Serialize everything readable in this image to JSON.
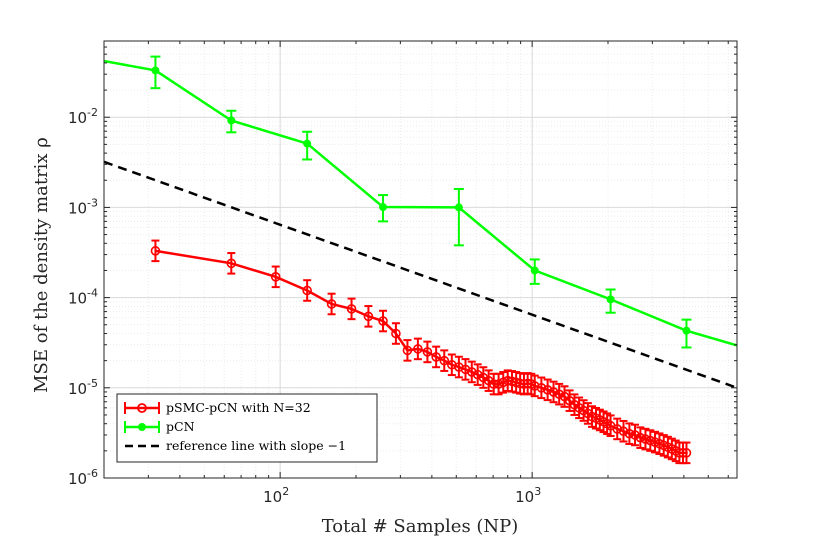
{
  "chart_data": {
    "type": "line",
    "scale": {
      "x": "log",
      "y": "log"
    },
    "xlabel": "Total # Samples (NP)",
    "ylabel": "MSE of the density matrix ρ",
    "xlim": [
      20,
      6500
    ],
    "ylim": [
      1e-06,
      0.07
    ],
    "grid": true,
    "legend_position": "bottom-left",
    "x_ticks": [
      {
        "value": 100,
        "base": "10",
        "exp": "2"
      },
      {
        "value": 1000,
        "base": "10",
        "exp": "3"
      }
    ],
    "y_ticks": [
      {
        "value": 0.01,
        "base": "10",
        "exp": "-2"
      },
      {
        "value": 0.001,
        "base": "10",
        "exp": "-3"
      },
      {
        "value": 0.0001,
        "base": "10",
        "exp": "-4"
      },
      {
        "value": 1e-05,
        "base": "10",
        "exp": "-5"
      },
      {
        "value": 1e-06,
        "base": "10",
        "exp": "-6"
      }
    ],
    "series": [
      {
        "name": "pSMC-pCN with N=32",
        "color": "#ff0000",
        "marker": "open-circle",
        "x": [
          32,
          64,
          96,
          128,
          160,
          192,
          224,
          256,
          288,
          320,
          352,
          384,
          416,
          448,
          480,
          512,
          544,
          576,
          608,
          640,
          672,
          704,
          736,
          768,
          800,
          832,
          864,
          896,
          928,
          960,
          992,
          1024,
          1088,
          1152,
          1216,
          1280,
          1344,
          1408,
          1472,
          1536,
          1600,
          1664,
          1728,
          1792,
          1856,
          1920,
          1984,
          2048,
          2176,
          2304,
          2432,
          2560,
          2688,
          2816,
          2944,
          3072,
          3200,
          3328,
          3456,
          3584,
          3712,
          3840,
          3968,
          4096
        ],
        "y": [
          0.00033,
          0.00024,
          0.00017,
          0.00012,
          8.5e-05,
          7.5e-05,
          6.2e-05,
          5.5e-05,
          4e-05,
          2.6e-05,
          2.7e-05,
          2.5e-05,
          2.2e-05,
          2e-05,
          1.8e-05,
          1.7e-05,
          1.6e-05,
          1.5e-05,
          1.4e-05,
          1.3e-05,
          1.2e-05,
          1.1e-05,
          1.1e-05,
          1.15e-05,
          1.2e-05,
          1.18e-05,
          1.15e-05,
          1.12e-05,
          1.1e-05,
          1.12e-05,
          1.1e-05,
          1.05e-05,
          1e-05,
          9.5e-06,
          9e-06,
          8.5e-06,
          8e-06,
          7.2e-06,
          6.5e-06,
          6e-06,
          5.6e-06,
          5.2e-06,
          4.8e-06,
          4.6e-06,
          4.4e-06,
          4.2e-06,
          4e-06,
          3.8e-06,
          3.5e-06,
          3.3e-06,
          3.1e-06,
          3e-06,
          2.8e-06,
          2.7e-06,
          2.6e-06,
          2.5e-06,
          2.4e-06,
          2.3e-06,
          2.2e-06,
          2.1e-06,
          2e-06,
          1.9e-06,
          1.9e-06,
          1.9e-06
        ],
        "y_err_factor": 1.3
      },
      {
        "name": "pCN",
        "color": "#00ff00",
        "marker": "filled-circle",
        "x": [
          20,
          32,
          64,
          128,
          256,
          512,
          1024,
          2048,
          4096,
          6500
        ],
        "y": [
          0.042,
          0.033,
          0.0092,
          0.0051,
          0.00101,
          0.001,
          0.0002,
          9.56e-05,
          4.3e-05,
          2.95e-05
        ],
        "y_err_lower": [
          null,
          0.021,
          0.0068,
          0.0034,
          0.0007,
          0.00038,
          0.000142,
          6.8e-05,
          2.8e-05,
          null
        ],
        "y_err_upper": [
          null,
          0.047,
          0.0118,
          0.0069,
          0.00137,
          0.0016,
          0.000265,
          0.000123,
          5.7e-05,
          null
        ]
      },
      {
        "name": "reference line with slope −1",
        "color": "#000000",
        "style": "dashed",
        "x": [
          20,
          6500
        ],
        "y": [
          0.0032,
          1e-05
        ]
      }
    ]
  }
}
